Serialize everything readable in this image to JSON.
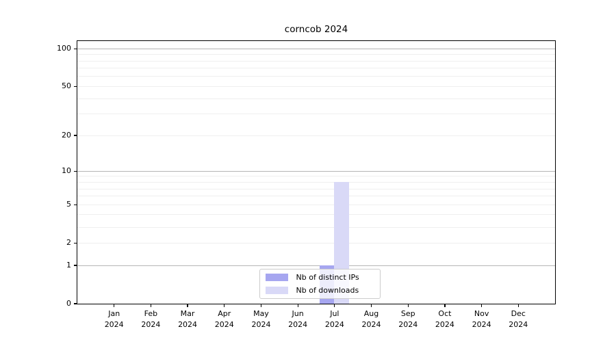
{
  "chart_data": {
    "type": "bar",
    "title": "corncob 2024",
    "categories": [
      "Jan",
      "Feb",
      "Mar",
      "Apr",
      "May",
      "Jun",
      "Jul",
      "Aug",
      "Sep",
      "Oct",
      "Nov",
      "Dec"
    ],
    "category_year": "2024",
    "series": [
      {
        "name": "Nb of distinct IPs",
        "color": "#a6a6f0",
        "values": [
          0,
          0,
          0,
          0,
          0,
          0,
          1,
          0,
          0,
          0,
          0,
          0
        ]
      },
      {
        "name": "Nb of downloads",
        "color": "#d9d9f7",
        "values": [
          0,
          0,
          0,
          0,
          0,
          0,
          8,
          0,
          0,
          0,
          0,
          0
        ]
      }
    ],
    "xlabel": "",
    "ylabel": "",
    "y_axis": {
      "scale": "log10(1+x)",
      "tick_values": [
        0,
        1,
        2,
        5,
        10,
        20,
        50,
        100
      ],
      "max": 115,
      "minor_gridlines": [
        2,
        3,
        4,
        5,
        6,
        7,
        8,
        9,
        20,
        30,
        40,
        50,
        60,
        70,
        80,
        90
      ],
      "major_gridlines": [
        1,
        10,
        100
      ]
    },
    "legend": {
      "position": "lower center"
    },
    "grid": true,
    "colors": {
      "background": "#ffffff",
      "axis": "#000000",
      "major_grid": "#b5b5b5",
      "minor_grid": "#efefef",
      "legend_border": "#cccccc"
    }
  }
}
